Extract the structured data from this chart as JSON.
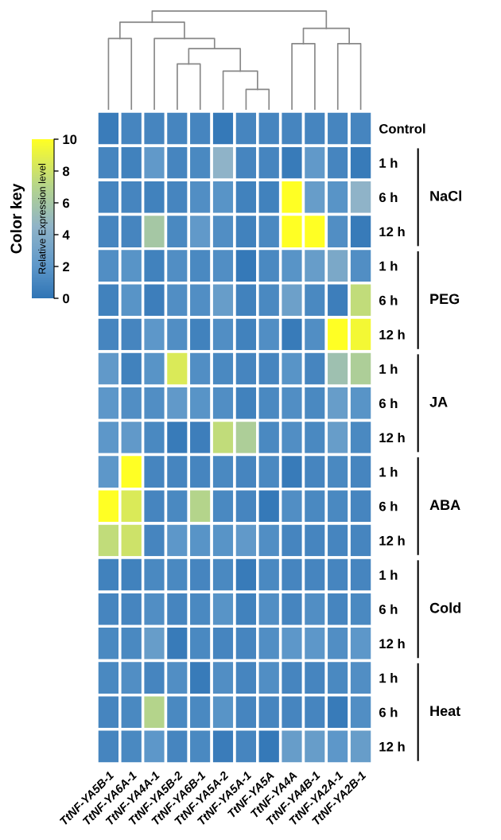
{
  "chart_data": {
    "type": "heatmap",
    "categories": [
      "TtNF-YA5B-1",
      "TtNF-YA6A-1",
      "TtNF-YA4A-1",
      "TtNF-YA5B-2",
      "TtNF-YA6B-1",
      "TtNF-YA5A-2",
      "TtNF-YA5A-1",
      "TtNF-YA5A",
      "TtNF-YA4A",
      "TtNF-YA4B-1",
      "TtNF-YA2A-1",
      "TtNF-YA2B-1"
    ],
    "y_categories": [
      "Control",
      "1 h",
      "6 h",
      "12 h",
      "1 h",
      "6 h",
      "12 h",
      "1 h",
      "6 h",
      "12 h",
      "1 h",
      "6 h",
      "12 h",
      "1 h",
      "6 h",
      "12 h",
      "1 h",
      "6 h",
      "12 h"
    ],
    "cells": [
      [
        0.5,
        1.0,
        1.0,
        1.0,
        1.0,
        0.3,
        1.0,
        1.0,
        1.0,
        1.0,
        1.0,
        1.0
      ],
      [
        1.0,
        0.8,
        2.2,
        1.0,
        1.2,
        4.5,
        1.0,
        1.0,
        0.4,
        2.2,
        1.0,
        0.4
      ],
      [
        1.0,
        1.0,
        0.8,
        1.0,
        1.5,
        1.8,
        0.8,
        0.8,
        10,
        2.5,
        1.8,
        4.5
      ],
      [
        1.0,
        1.0,
        6,
        1.2,
        2.2,
        1.5,
        0.8,
        1.2,
        10,
        10,
        1.5,
        0.4
      ],
      [
        1.5,
        1.8,
        0.8,
        1.5,
        1.2,
        1.5,
        0.3,
        1.2,
        1.8,
        2.5,
        3.5,
        1.5
      ],
      [
        0.8,
        1.8,
        0.6,
        1.5,
        1.5,
        2.5,
        0.8,
        1.2,
        2.8,
        1.2,
        0.6,
        7.5
      ],
      [
        1.0,
        1.0,
        2.0,
        1.5,
        0.8,
        1.5,
        0.8,
        1.5,
        0.4,
        1.5,
        10,
        9.5
      ],
      [
        2.2,
        0.8,
        1.8,
        8.5,
        1.5,
        1.2,
        1.0,
        1.0,
        1.8,
        1.0,
        5.5,
        6.5
      ],
      [
        2.0,
        1.5,
        1.5,
        2.2,
        1.8,
        1.5,
        0.8,
        1.2,
        1.5,
        1.2,
        2.5,
        1.8
      ],
      [
        2.0,
        2.2,
        1.2,
        0.4,
        0.6,
        7.5,
        6.5,
        1.2,
        1.5,
        1.2,
        2.5,
        1.2
      ],
      [
        2.0,
        10,
        1.0,
        1.0,
        1.0,
        1.2,
        1.0,
        1.2,
        0.4,
        1.0,
        1.2,
        1.0
      ],
      [
        10,
        8.5,
        1.0,
        1.2,
        7,
        1.2,
        1.0,
        0.3,
        1.5,
        1.2,
        1.2,
        1.0
      ],
      [
        7.5,
        8,
        1.0,
        2.0,
        1.8,
        1.8,
        2.2,
        1.5,
        1.0,
        1.0,
        1.0,
        1.0
      ],
      [
        0.8,
        0.8,
        1.2,
        1.2,
        1.0,
        1.2,
        0.4,
        1.2,
        1.0,
        1.0,
        1.0,
        1.0
      ],
      [
        1.0,
        1.0,
        1.5,
        1.0,
        1.2,
        1.8,
        0.8,
        1.5,
        1.0,
        1.5,
        1.0,
        1.2
      ],
      [
        1.2,
        1.2,
        2.5,
        0.4,
        1.2,
        1.0,
        1.0,
        1.5,
        2.0,
        2.0,
        1.5,
        2.0
      ],
      [
        1.2,
        1.5,
        1.0,
        1.5,
        0.4,
        1.5,
        1.0,
        1.5,
        1.0,
        1.0,
        1.2,
        1.5
      ],
      [
        1.0,
        1.2,
        7,
        1.2,
        1.2,
        1.8,
        1.0,
        1.0,
        1.0,
        1.0,
        0.4,
        1.5
      ],
      [
        1.0,
        1.2,
        2.0,
        1.0,
        1.2,
        0.5,
        1.0,
        0.3,
        2.5,
        2.5,
        2.0,
        2.5
      ]
    ],
    "clim": [
      0,
      10
    ],
    "cticks": [
      0,
      2,
      4,
      6,
      8,
      10
    ],
    "title": "Color key",
    "clabel": "Relative Expression level",
    "annotations": [
      "NaCl",
      "PEG",
      "JA",
      "ABA",
      "Cold",
      "Heat"
    ]
  }
}
